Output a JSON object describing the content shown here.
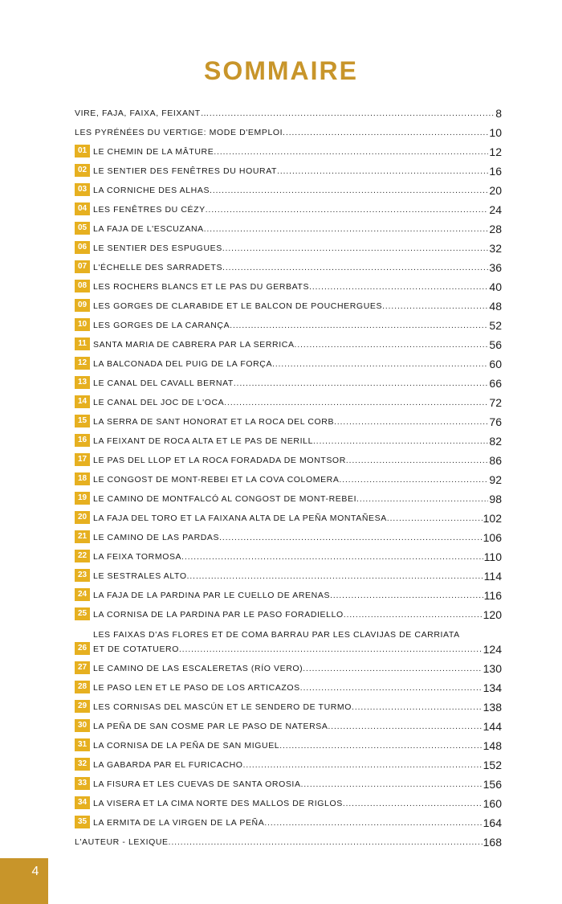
{
  "title": "SOMMAIRE",
  "page_number": "4",
  "accent_color": "#c8952a",
  "badge_color": "#e6b020",
  "entries": [
    {
      "num": "",
      "label": "Vire, faja, faixa, feixant…",
      "page": "8"
    },
    {
      "num": "",
      "label": "Les Pyrénées du vertige: mode d'emploi",
      "page": "10"
    },
    {
      "num": "01",
      "label": "Le chemin de la Mâture",
      "page": "12"
    },
    {
      "num": "02",
      "label": "Le sentier des Fenêtres du Hourat",
      "page": "16"
    },
    {
      "num": "03",
      "label": "La corniche des Alhas",
      "page": "20"
    },
    {
      "num": "04",
      "label": "Les fenêtres du Cézy",
      "page": "24"
    },
    {
      "num": "05",
      "label": "La faja de l'Escuzana",
      "page": "28"
    },
    {
      "num": "06",
      "label": "Le sentier des Espugues",
      "page": "32"
    },
    {
      "num": "07",
      "label": "L'échelle des Sarradets",
      "page": "36"
    },
    {
      "num": "08",
      "label": "Les rochers blancs et le pas du Gerbats",
      "page": "40"
    },
    {
      "num": "09",
      "label": "Les gorges de Clarabide et le balcon de Pouchergues",
      "page": "48"
    },
    {
      "num": "10",
      "label": "Les gorges de la Carança",
      "page": "52"
    },
    {
      "num": "11",
      "label": "Santa Maria de Cabrera par la Serrica",
      "page": "56"
    },
    {
      "num": "12",
      "label": "La balconada del Puig de la Força",
      "page": "60"
    },
    {
      "num": "13",
      "label": "Le canal del Cavall Bernat",
      "page": "66"
    },
    {
      "num": "14",
      "label": "Le canal del Joc de l'Oca",
      "page": "72"
    },
    {
      "num": "15",
      "label": "La serra de Sant Honorat et la roca del Corb",
      "page": "76"
    },
    {
      "num": "16",
      "label": "La feixant de Roca Alta et le pas de Nerill",
      "page": "82"
    },
    {
      "num": "17",
      "label": "Le pas del Llop et la roca Foradada de Montsor",
      "page": "86"
    },
    {
      "num": "18",
      "label": "Le congost de Mont-Rebei et la cova Colomera",
      "page": "92"
    },
    {
      "num": "19",
      "label": "Le camino de Montfalcó al congost de Mont-Rebei",
      "page": "98"
    },
    {
      "num": "20",
      "label": "La faja del Toro et la faixana alta de la Peña Montañesa",
      "page": "102"
    },
    {
      "num": "21",
      "label": "Le camino de las Pardas",
      "page": "106"
    },
    {
      "num": "22",
      "label": "La feixa Tormosa",
      "page": "110"
    },
    {
      "num": "23",
      "label": "Le Sestrales Alto",
      "page": "114"
    },
    {
      "num": "24",
      "label": "La faja de la Pardina par le cuello de Arenas",
      "page": "116"
    },
    {
      "num": "25",
      "label": "La cornisa de la Pardina par le paso Foradiello",
      "page": "120"
    },
    {
      "num": "26",
      "label": "Les faixas d'As Flores et de Coma Barrau par les clavijas de Carriata",
      "label2": "et de Cotatuero",
      "page": "124"
    },
    {
      "num": "27",
      "label": "Le camino de las Escaleretas (río Vero)",
      "page": "130"
    },
    {
      "num": "28",
      "label": "Le paso Len et le paso de los Articazos",
      "page": "134"
    },
    {
      "num": "29",
      "label": "Les cornisas del Mascún et le sendero de Turmo",
      "page": "138"
    },
    {
      "num": "30",
      "label": "La Peña de San Cosme par le paso de Natersa",
      "page": "144"
    },
    {
      "num": "31",
      "label": "La cornisa de la Peña de San Miguel",
      "page": "148"
    },
    {
      "num": "32",
      "label": "La gabarda par el Furicacho",
      "page": "152"
    },
    {
      "num": "33",
      "label": "La fisura et les cuevas de Santa Orosia",
      "page": "156"
    },
    {
      "num": "34",
      "label": "La visera et la cima norte des Mallos de Riglos",
      "page": "160"
    },
    {
      "num": "35",
      "label": "La ermita de la Virgen de la Peña",
      "page": "164"
    },
    {
      "num": "",
      "label": "L'auteur - lexique",
      "page": "168"
    }
  ]
}
